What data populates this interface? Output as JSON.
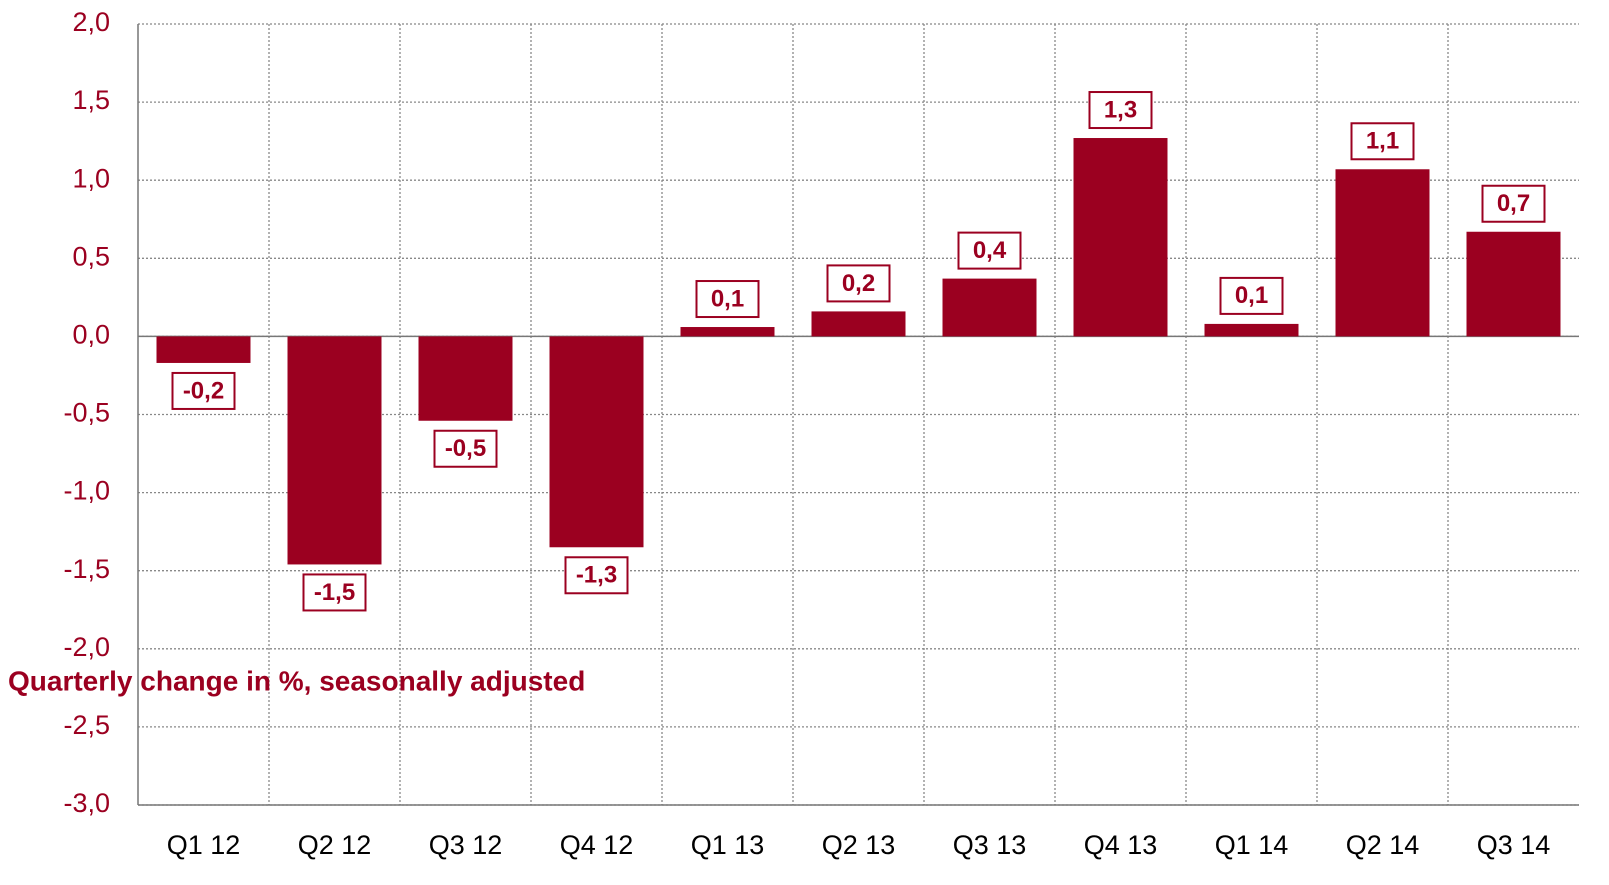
{
  "chart_data": {
    "type": "bar",
    "annotation": "Quarterly change in %, seasonally adjusted",
    "categories": [
      "Q1 12",
      "Q2 12",
      "Q3 12",
      "Q4 12",
      "Q1 13",
      "Q2 13",
      "Q3 13",
      "Q4 13",
      "Q1 14",
      "Q2 14",
      "Q3 14"
    ],
    "values": [
      -0.17,
      -1.46,
      -0.54,
      -1.35,
      0.06,
      0.16,
      0.37,
      1.27,
      0.08,
      1.07,
      0.67
    ],
    "value_labels": [
      "-0,2",
      "-1,5",
      "-0,5",
      "-1,3",
      "0,1",
      "0,2",
      "0,4",
      "1,3",
      "0,1",
      "1,1",
      "0,7"
    ],
    "color": "#9b0020",
    "ylim": [
      -3,
      2
    ],
    "yticks": [
      {
        "value": 2,
        "label": "2,0"
      },
      {
        "value": 1.5,
        "label": "1,5"
      },
      {
        "value": 1,
        "label": "1,0"
      },
      {
        "value": 0.5,
        "label": "0,5"
      },
      {
        "value": 0,
        "label": "0,0"
      },
      {
        "value": -0.5,
        "label": "-0,5"
      },
      {
        "value": -1,
        "label": "-1,0"
      },
      {
        "value": -1.5,
        "label": "-1,5"
      },
      {
        "value": -2,
        "label": "-2,0"
      },
      {
        "value": -2.5,
        "label": "-2,5"
      },
      {
        "value": -3,
        "label": "-3,0"
      }
    ],
    "grid": true
  }
}
